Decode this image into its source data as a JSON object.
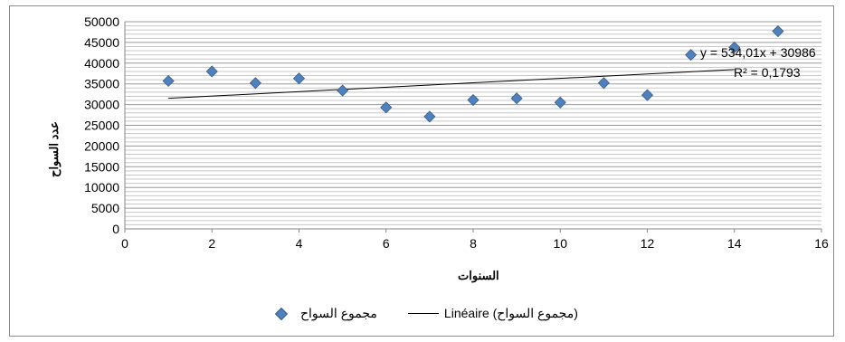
{
  "chart_data": {
    "type": "scatter",
    "title": "",
    "xlabel": "السنوات",
    "ylabel": "عدد السواح",
    "xlim": [
      0,
      16
    ],
    "ylim": [
      0,
      50000
    ],
    "x_ticks": [
      0,
      2,
      4,
      6,
      8,
      10,
      12,
      14,
      16
    ],
    "y_ticks": [
      0,
      5000,
      10000,
      15000,
      20000,
      25000,
      30000,
      35000,
      40000,
      45000,
      50000
    ],
    "grid": true,
    "legend_position": "bottom",
    "series": [
      {
        "name": "مجموع السواح",
        "marker": "diamond",
        "color": "#4f81bd",
        "x": [
          1,
          2,
          3,
          4,
          5,
          6,
          7,
          8,
          9,
          10,
          11,
          12,
          13,
          14,
          15
        ],
        "y": [
          35700,
          38000,
          35200,
          36300,
          33400,
          29300,
          27100,
          31100,
          31500,
          30500,
          35200,
          32300,
          42000,
          43800,
          47700
        ]
      }
    ],
    "trendline": {
      "name": "Linéaire (مجموع السواح)",
      "type": "linear",
      "slope": 534.01,
      "intercept": 30986,
      "x_range": [
        1,
        14
      ],
      "equation": "y = 534,01x + 30986",
      "r2": "R² = 0,1793",
      "color": "#000000"
    }
  }
}
